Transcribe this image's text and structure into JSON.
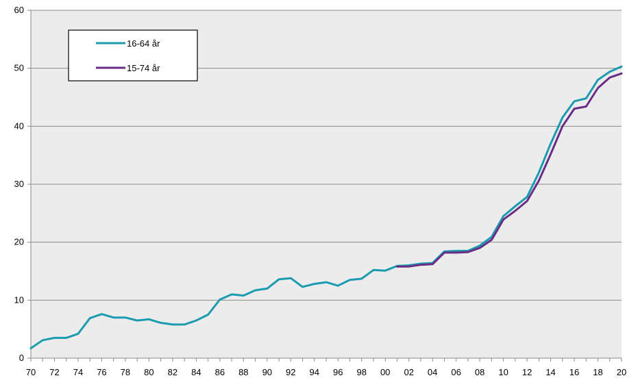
{
  "chart_data": {
    "type": "line",
    "title": "",
    "xlabel": "",
    "ylabel": "",
    "ylim": [
      0,
      60
    ],
    "yticks": [
      "0",
      "10",
      "20",
      "30",
      "40",
      "50",
      "60"
    ],
    "xlim": [
      1970,
      2020
    ],
    "xtick_labels": [
      "70",
      "72",
      "74",
      "76",
      "78",
      "80",
      "82",
      "84",
      "86",
      "88",
      "90",
      "92",
      "94",
      "96",
      "98",
      "00",
      "02",
      "04",
      "06",
      "08",
      "10",
      "12",
      "14",
      "16",
      "18",
      "20"
    ],
    "grid": "horizontal",
    "legend_position": "top-left",
    "series": [
      {
        "name": "16-64 år",
        "color": "#1a9bb0",
        "x": [
          1970,
          1971,
          1972,
          1973,
          1974,
          1975,
          1976,
          1977,
          1978,
          1979,
          1980,
          1981,
          1982,
          1983,
          1984,
          1985,
          1986,
          1987,
          1988,
          1989,
          1990,
          1991,
          1992,
          1993,
          1994,
          1995,
          1996,
          1997,
          1998,
          1999,
          2000,
          2001,
          2002,
          2003,
          2004,
          2005,
          2006,
          2007,
          2008,
          2009,
          2010,
          2011,
          2012,
          2013,
          2014,
          2015,
          2016,
          2017,
          2018,
          2019,
          2020
        ],
        "values": [
          1.7,
          3.1,
          3.5,
          3.5,
          4.2,
          6.9,
          7.6,
          7.0,
          7.0,
          6.5,
          6.7,
          6.1,
          5.8,
          5.8,
          6.5,
          7.5,
          10.1,
          11.0,
          10.8,
          11.7,
          12.0,
          13.6,
          13.8,
          12.3,
          12.8,
          13.1,
          12.5,
          13.5,
          13.7,
          15.2,
          15.1,
          15.9,
          16.0,
          16.3,
          16.4,
          18.4,
          18.5,
          18.5,
          19.4,
          20.9,
          24.5,
          26.2,
          27.8,
          32.0,
          37.0,
          41.5,
          44.3,
          44.8,
          48.0,
          49.4,
          50.3
        ]
      },
      {
        "name": "15-74 år",
        "color": "#6b2c86",
        "x": [
          2001,
          2002,
          2003,
          2004,
          2005,
          2006,
          2007,
          2008,
          2009,
          2010,
          2011,
          2012,
          2013,
          2014,
          2015,
          2016,
          2017,
          2018,
          2019,
          2020
        ],
        "values": [
          15.8,
          15.8,
          16.1,
          16.2,
          18.2,
          18.2,
          18.3,
          19.0,
          20.4,
          23.9,
          25.4,
          27.1,
          30.6,
          35.2,
          40.0,
          43.0,
          43.4,
          46.6,
          48.4,
          49.1
        ]
      }
    ]
  }
}
